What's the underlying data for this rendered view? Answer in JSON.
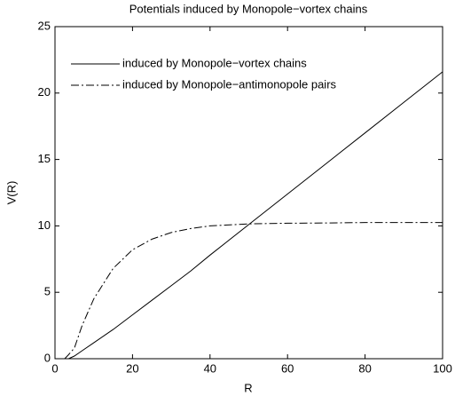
{
  "chart_data": {
    "type": "line",
    "title": "Potentials induced by Monopole−vortex chains",
    "xlabel": "R",
    "ylabel": "V(R)",
    "x": [
      2.5,
      3.5,
      5,
      7,
      10,
      15,
      20,
      25,
      30,
      35,
      40,
      50,
      60,
      70,
      80,
      90,
      100
    ],
    "series": [
      {
        "name": "induced by Monopole−vortex chains",
        "color": "#000000",
        "linestyle": "solid",
        "values": [
          null,
          0,
          0.2,
          0.6,
          1.2,
          2.2,
          3.3,
          4.4,
          5.5,
          6.6,
          7.8,
          10.1,
          12.4,
          14.7,
          17,
          19.3,
          21.6
        ]
      },
      {
        "name": "induced by Monopole−antimonopole pairs",
        "color": "#000000",
        "linestyle": "dashdot",
        "values": [
          0,
          0.3,
          0.8,
          2.5,
          4.5,
          6.8,
          8.2,
          9,
          9.5,
          9.8,
          10,
          10.15,
          10.2,
          10.22,
          10.25,
          10.25,
          10.25
        ]
      }
    ],
    "xlim": [
      0,
      100
    ],
    "xticks": [
      0,
      20,
      40,
      60,
      80,
      100
    ],
    "ylim": [
      0,
      25
    ],
    "yticks": [
      0,
      5,
      10,
      15,
      20,
      25
    ],
    "grid": false,
    "legend": "upper left"
  }
}
